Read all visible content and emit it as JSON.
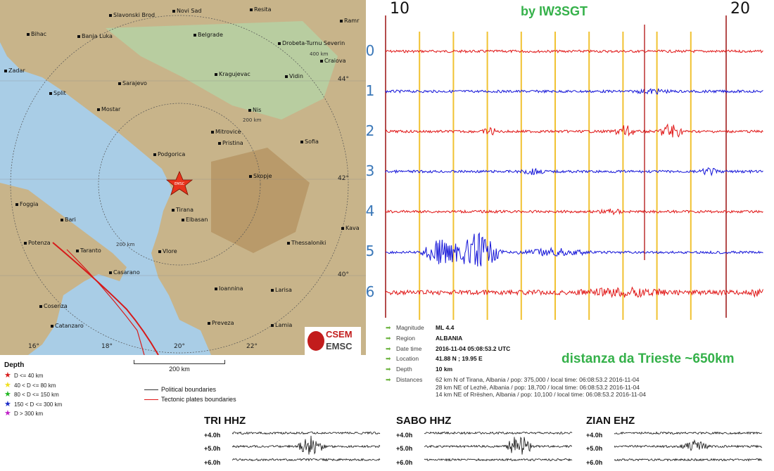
{
  "author": "by IW3SGT",
  "time_axis": {
    "start_label": "10",
    "end_label": "20"
  },
  "channels": [
    "0",
    "1",
    "2",
    "3",
    "4",
    "5",
    "6"
  ],
  "channel_colors": [
    "#e01616",
    "#1414d8",
    "#e01616",
    "#1414d8",
    "#e01616",
    "#1414d8",
    "#e01616"
  ],
  "map": {
    "cities": [
      {
        "name": "Slavonski Brod"
      },
      {
        "name": "Novi Sad"
      },
      {
        "name": "Resita"
      },
      {
        "name": "Bihac"
      },
      {
        "name": "Banja Luka"
      },
      {
        "name": "Belgrade"
      },
      {
        "name": "Drobeta-Turnu Severin"
      },
      {
        "name": "Craiova"
      },
      {
        "name": "Zadar"
      },
      {
        "name": "Kragujevac"
      },
      {
        "name": "Vidin"
      },
      {
        "name": "Split"
      },
      {
        "name": "Sarajevo"
      },
      {
        "name": "Mostar"
      },
      {
        "name": "Nis"
      },
      {
        "name": "Mitrovice"
      },
      {
        "name": "Pristina"
      },
      {
        "name": "Podgorica"
      },
      {
        "name": "Sofia"
      },
      {
        "name": "Skopje"
      },
      {
        "name": "Foggia"
      },
      {
        "name": "Tirana"
      },
      {
        "name": "Elbasan"
      },
      {
        "name": "Bari"
      },
      {
        "name": "Potenza"
      },
      {
        "name": "Taranto"
      },
      {
        "name": "Vlore"
      },
      {
        "name": "Thessaloniki"
      },
      {
        "name": "Kava"
      },
      {
        "name": "Casarano"
      },
      {
        "name": "Cosenza"
      },
      {
        "name": "Ioannina"
      },
      {
        "name": "Larisa"
      },
      {
        "name": "Catanzaro"
      },
      {
        "name": "Preveza"
      },
      {
        "name": "Lamia"
      },
      {
        "name": "Ramr"
      }
    ],
    "coords": [
      "44°",
      "42°",
      "40°",
      "16°",
      "18°",
      "20°",
      "22°"
    ],
    "ring_labels": [
      "400 km",
      "200 km",
      "200 km"
    ],
    "epicenter_label": "EMSC",
    "logo": {
      "line1": "CSEM",
      "line2": "EMSC"
    }
  },
  "legend": {
    "title": "Depth",
    "depths": [
      {
        "label": "D <= 40 km",
        "color": "#d81e1e"
      },
      {
        "label": "40 < D <= 80 km",
        "color": "#f0e020"
      },
      {
        "label": "80 < D <= 150 km",
        "color": "#22b822"
      },
      {
        "label": "150 < D <= 300 km",
        "color": "#1c2cc8"
      },
      {
        "label": "D > 300 km",
        "color": "#c020c8"
      }
    ],
    "scale": "200 km",
    "boundaries": [
      {
        "label": "Political boundaries",
        "color": "#333333"
      },
      {
        "label": "Tectonic plates boundaries",
        "color": "#e01616"
      }
    ]
  },
  "event": {
    "magnitude_label": "Magnitude",
    "magnitude": "ML 4.4",
    "region_label": "Region",
    "region": "ALBANIA",
    "date_label": "Date time",
    "date": "2016-11-04 05:08:53.2 UTC",
    "location_label": "Location",
    "location": "41.88 N ; 19.95 E",
    "depth_label": "Depth",
    "depth": "10 km",
    "distances_label": "Distances",
    "distances": [
      "62 km N of Tirana, Albania / pop: 375,000 / local time: 06:08:53.2 2016-11-04",
      "28 km NE of Lezhë, Albania / pop: 18,700 / local time: 06:08:53.2 2016-11-04",
      "14 km NE of Rrëshen, Albania / pop: 10,100 / local time: 06:08:53.2 2016-11-04"
    ]
  },
  "distance_note": "distanza da Trieste ~650km",
  "stations": [
    {
      "name": "TRI HHZ",
      "rows": [
        "+4.0h",
        "+5.0h",
        "+6.0h"
      ]
    },
    {
      "name": "SABO HHZ",
      "rows": [
        "+4.0h",
        "+5.0h",
        "+6.0h"
      ]
    },
    {
      "name": "ZIAN EHZ",
      "rows": [
        "+4.0h",
        "+5.0h",
        "+6.0h"
      ]
    }
  ]
}
